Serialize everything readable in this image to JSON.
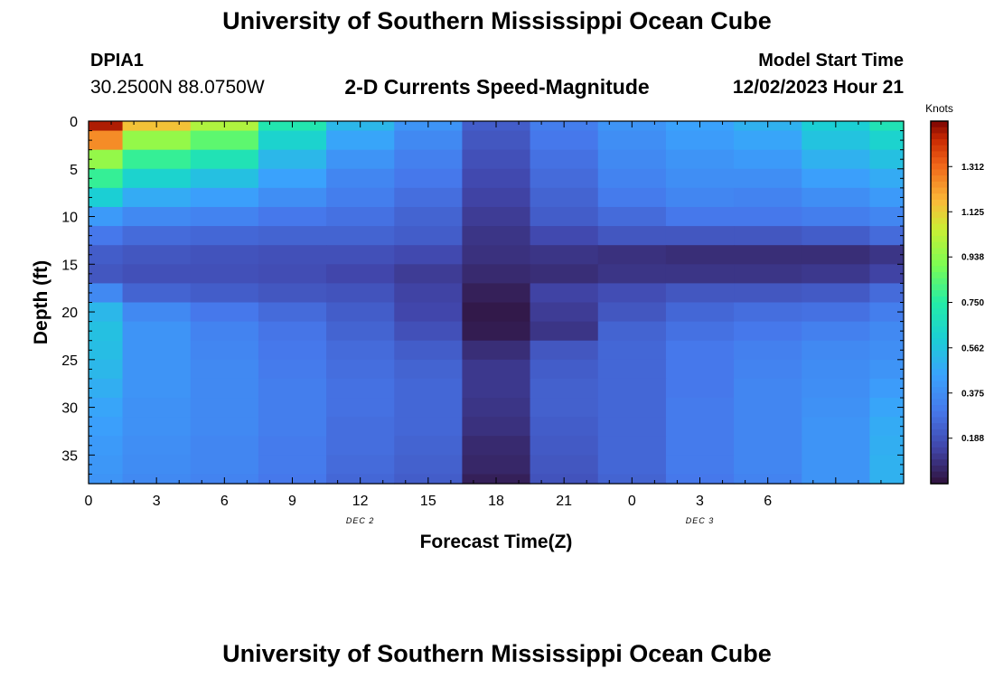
{
  "header": {
    "title": "University of Southern Mississippi Ocean Cube",
    "station_id": "DPIA1",
    "station_coords": "30.2500N  88.0750W",
    "subtitle": "2-D Currents Speed-Magnitude",
    "model_label": "Model Start Time",
    "model_time": "12/02/2023 Hour 21"
  },
  "footer": {
    "title": "University of Southern Mississippi Ocean Cube"
  },
  "chart_data": {
    "type": "heatmap",
    "title": "2-D Currents Speed-Magnitude",
    "xlabel": "Forecast Time(Z)",
    "ylabel": "Depth (ft)",
    "xlim": [
      0,
      36
    ],
    "ylim": [
      38,
      0
    ],
    "x_ticks": [
      0,
      3,
      6,
      9,
      12,
      15,
      18,
      21,
      24,
      27,
      30,
      33,
      36
    ],
    "x_tick_labels": [
      "0",
      "3",
      "6",
      "9",
      "12",
      "15",
      "18",
      "21",
      "0",
      "3",
      "6"
    ],
    "x_label_positions": [
      0,
      3,
      6,
      9,
      12,
      15,
      18,
      21,
      24,
      27,
      30
    ],
    "day_labels": [
      {
        "text": "DEC 2",
        "x": 12
      },
      {
        "text": "DEC 3",
        "x": 27
      }
    ],
    "y_ticks": [
      0,
      5,
      10,
      15,
      20,
      25,
      30,
      35
    ],
    "colorbar": {
      "label": "Knots",
      "min": 0.0,
      "max": 1.5,
      "ticks": [
        0.188,
        0.375,
        0.562,
        0.75,
        0.938,
        1.125,
        1.312
      ],
      "tick_labels": [
        "0.188",
        "0.375",
        "0.562",
        "0.750",
        "0.938",
        "1.125",
        "1.312"
      ]
    },
    "time_steps": [
      0,
      3,
      6,
      9,
      12,
      15,
      18,
      21,
      24,
      27,
      30,
      33,
      36
    ],
    "time_step_hours": 3,
    "column_widths_relative": [
      0.5,
      1,
      1,
      1,
      1,
      1,
      1,
      1,
      1,
      1,
      1,
      1,
      0.5
    ],
    "depths": [
      0,
      2,
      4,
      6,
      8,
      10,
      12,
      14,
      16,
      18,
      20,
      22,
      24,
      26,
      28,
      30,
      32,
      34,
      36,
      38
    ],
    "values": [
      [
        1.45,
        1.15,
        1.0,
        0.72,
        0.52,
        0.4,
        0.22,
        0.32,
        0.4,
        0.45,
        0.5,
        0.6,
        0.7
      ],
      [
        1.25,
        0.95,
        0.85,
        0.62,
        0.46,
        0.36,
        0.2,
        0.3,
        0.38,
        0.43,
        0.46,
        0.56,
        0.62
      ],
      [
        0.95,
        0.78,
        0.7,
        0.52,
        0.4,
        0.33,
        0.18,
        0.28,
        0.36,
        0.4,
        0.42,
        0.5,
        0.55
      ],
      [
        0.78,
        0.62,
        0.55,
        0.45,
        0.35,
        0.3,
        0.16,
        0.26,
        0.34,
        0.38,
        0.38,
        0.44,
        0.48
      ],
      [
        0.6,
        0.48,
        0.44,
        0.38,
        0.32,
        0.27,
        0.14,
        0.24,
        0.31,
        0.35,
        0.34,
        0.38,
        0.42
      ],
      [
        0.42,
        0.36,
        0.34,
        0.3,
        0.28,
        0.24,
        0.12,
        0.22,
        0.26,
        0.3,
        0.3,
        0.32,
        0.35
      ],
      [
        0.3,
        0.26,
        0.25,
        0.24,
        0.24,
        0.22,
        0.1,
        0.16,
        0.2,
        0.2,
        0.2,
        0.22,
        0.26
      ],
      [
        0.22,
        0.2,
        0.19,
        0.18,
        0.18,
        0.16,
        0.09,
        0.1,
        0.09,
        0.08,
        0.08,
        0.08,
        0.1
      ],
      [
        0.2,
        0.18,
        0.18,
        0.17,
        0.15,
        0.12,
        0.07,
        0.08,
        0.1,
        0.1,
        0.1,
        0.11,
        0.14
      ],
      [
        0.36,
        0.24,
        0.22,
        0.2,
        0.19,
        0.14,
        0.04,
        0.14,
        0.17,
        0.2,
        0.2,
        0.21,
        0.26
      ],
      [
        0.52,
        0.36,
        0.3,
        0.26,
        0.22,
        0.15,
        0.02,
        0.12,
        0.2,
        0.25,
        0.27,
        0.28,
        0.32
      ],
      [
        0.55,
        0.4,
        0.34,
        0.29,
        0.24,
        0.18,
        0.03,
        0.1,
        0.24,
        0.28,
        0.3,
        0.33,
        0.36
      ],
      [
        0.54,
        0.4,
        0.35,
        0.3,
        0.26,
        0.22,
        0.08,
        0.2,
        0.25,
        0.3,
        0.33,
        0.36,
        0.38
      ],
      [
        0.52,
        0.4,
        0.36,
        0.31,
        0.27,
        0.24,
        0.11,
        0.22,
        0.25,
        0.3,
        0.34,
        0.37,
        0.4
      ],
      [
        0.49,
        0.4,
        0.36,
        0.32,
        0.28,
        0.25,
        0.11,
        0.23,
        0.25,
        0.3,
        0.35,
        0.38,
        0.43
      ],
      [
        0.46,
        0.39,
        0.36,
        0.32,
        0.28,
        0.25,
        0.1,
        0.23,
        0.25,
        0.31,
        0.35,
        0.39,
        0.46
      ],
      [
        0.44,
        0.39,
        0.36,
        0.32,
        0.27,
        0.25,
        0.09,
        0.22,
        0.25,
        0.31,
        0.35,
        0.4,
        0.48
      ],
      [
        0.42,
        0.38,
        0.35,
        0.31,
        0.27,
        0.24,
        0.07,
        0.21,
        0.25,
        0.31,
        0.35,
        0.4,
        0.49
      ],
      [
        0.41,
        0.37,
        0.35,
        0.31,
        0.26,
        0.23,
        0.06,
        0.2,
        0.25,
        0.31,
        0.35,
        0.4,
        0.5
      ],
      [
        0.4,
        0.36,
        0.34,
        0.3,
        0.25,
        0.22,
        0.04,
        0.19,
        0.24,
        0.3,
        0.34,
        0.4,
        0.5
      ]
    ]
  }
}
